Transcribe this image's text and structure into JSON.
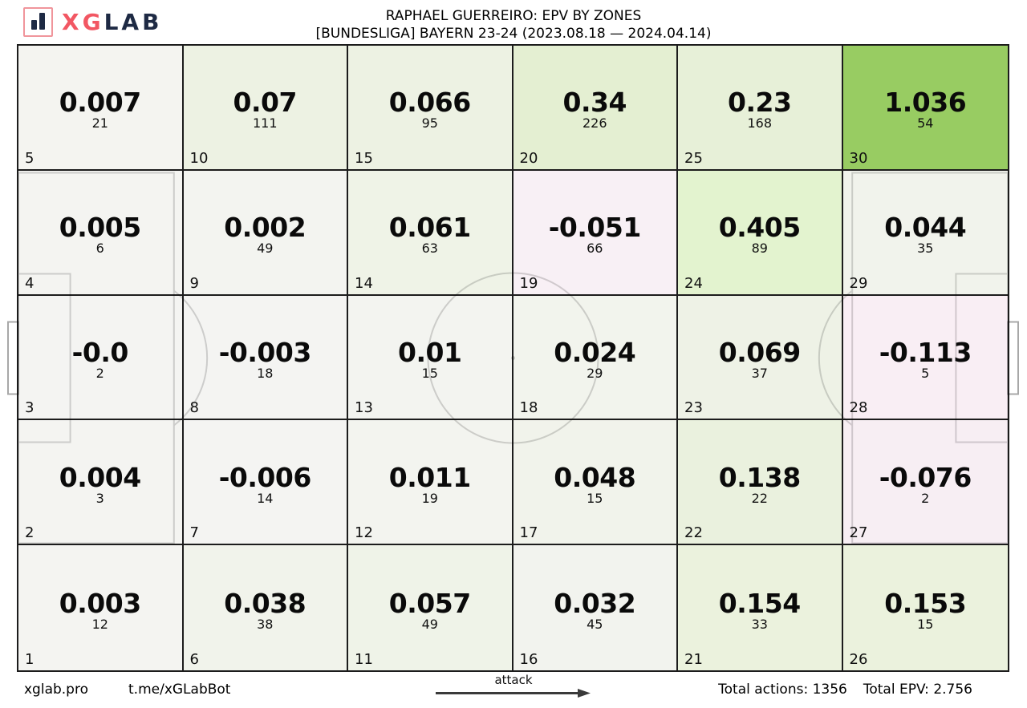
{
  "header": {
    "brand_primary": "XG",
    "brand_secondary": "LAB",
    "title_line1": "RAPHAEL GUERREIRO: EPV BY ZONES",
    "title_line2": "[BUNDESLIGA] BAYERN 23-24 (2023.08.18 — 2024.04.14)"
  },
  "colors": {
    "brand_accent": "#f25763",
    "brand_navy": "#1e2a44",
    "grid_border": "#1c1c1c",
    "pitch_line": "#d6d6d6",
    "goal_line": "#a8a8a8",
    "positive_max": "#98cc62",
    "negative_tint": "#f9eef4"
  },
  "chart_data": {
    "type": "heatmap",
    "title": "RAPHAEL GUERREIRO: EPV BY ZONES",
    "subtitle": "[BUNDESLIGA] BAYERN 23-24 (2023.08.18 — 2024.04.14)",
    "layout": {
      "rows": 5,
      "cols": 6,
      "zone_order": "zones listed row-major from top-left; zone ids run bottom-to-top within each column, columns left-to-right",
      "direction_label": "attack",
      "background": "football pitch outline"
    },
    "zones": [
      {
        "zone": 5,
        "epv": "0.007",
        "actions": 21,
        "color": "#f4f4f0"
      },
      {
        "zone": 10,
        "epv": "0.07",
        "actions": 111,
        "color": "#edf2e3"
      },
      {
        "zone": 15,
        "epv": "0.066",
        "actions": 95,
        "color": "#edf2e3"
      },
      {
        "zone": 20,
        "epv": "0.34",
        "actions": 226,
        "color": "#e4efd2"
      },
      {
        "zone": 25,
        "epv": "0.23",
        "actions": 168,
        "color": "#e7f0d8"
      },
      {
        "zone": 30,
        "epv": "1.036",
        "actions": 54,
        "color": "#98cc62"
      },
      {
        "zone": 4,
        "epv": "0.005",
        "actions": 6,
        "color": "#f4f4f1"
      },
      {
        "zone": 9,
        "epv": "0.002",
        "actions": 49,
        "color": "#f3f4f0"
      },
      {
        "zone": 14,
        "epv": "0.061",
        "actions": 63,
        "color": "#eff3e7"
      },
      {
        "zone": 19,
        "epv": "-0.051",
        "actions": 66,
        "color": "#f8f0f5"
      },
      {
        "zone": 24,
        "epv": "0.405",
        "actions": 89,
        "color": "#e3f3cf"
      },
      {
        "zone": 29,
        "epv": "0.044",
        "actions": 35,
        "color": "#f1f3ec"
      },
      {
        "zone": 3,
        "epv": "-0.0",
        "actions": 2,
        "color": "#f4f4f2"
      },
      {
        "zone": 8,
        "epv": "-0.003",
        "actions": 18,
        "color": "#f4f4f2"
      },
      {
        "zone": 13,
        "epv": "0.01",
        "actions": 15,
        "color": "#f3f4f0"
      },
      {
        "zone": 18,
        "epv": "0.024",
        "actions": 29,
        "color": "#f2f4ed"
      },
      {
        "zone": 23,
        "epv": "0.069",
        "actions": 37,
        "color": "#eef2e6"
      },
      {
        "zone": 28,
        "epv": "-0.113",
        "actions": 5,
        "color": "#f9eef4"
      },
      {
        "zone": 2,
        "epv": "0.004",
        "actions": 3,
        "color": "#f4f4f1"
      },
      {
        "zone": 7,
        "epv": "-0.006",
        "actions": 14,
        "color": "#f4f4f2"
      },
      {
        "zone": 12,
        "epv": "0.011",
        "actions": 19,
        "color": "#f3f4ef"
      },
      {
        "zone": 17,
        "epv": "0.048",
        "actions": 15,
        "color": "#f1f3eb"
      },
      {
        "zone": 22,
        "epv": "0.138",
        "actions": 22,
        "color": "#eaf1de"
      },
      {
        "zone": 27,
        "epv": "-0.076",
        "actions": 2,
        "color": "#f7eef3"
      },
      {
        "zone": 1,
        "epv": "0.003",
        "actions": 12,
        "color": "#f4f4f1"
      },
      {
        "zone": 6,
        "epv": "0.038",
        "actions": 38,
        "color": "#f1f3eb"
      },
      {
        "zone": 11,
        "epv": "0.057",
        "actions": 49,
        "color": "#eff3e8"
      },
      {
        "zone": 16,
        "epv": "0.032",
        "actions": 45,
        "color": "#f2f3ee"
      },
      {
        "zone": 21,
        "epv": "0.154",
        "actions": 33,
        "color": "#ebf2dd"
      },
      {
        "zone": 26,
        "epv": "0.153",
        "actions": 15,
        "color": "#ebf2dd"
      }
    ],
    "totals": {
      "actions": 1356,
      "epv": 2.756
    }
  },
  "footer": {
    "site": "xglab.pro",
    "telegram": "t.me/xGLabBot",
    "direction_label": "attack",
    "total_actions_label": "Total actions: 1356",
    "total_epv_label": "Total EPV: 2.756"
  }
}
